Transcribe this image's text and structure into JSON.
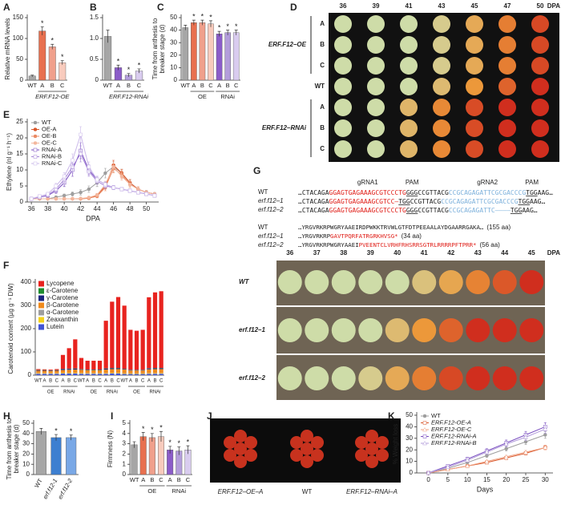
{
  "panel_labels": [
    "A",
    "B",
    "C",
    "D",
    "E",
    "F",
    "G",
    "H",
    "I",
    "J",
    "K"
  ],
  "chart_data": [
    {
      "type": "bar",
      "y_label": [
        "Relative mRNA levels"
      ],
      "categories": [
        "WT",
        "A",
        "B",
        "C"
      ],
      "values": [
        10,
        118,
        80,
        42
      ],
      "errors": [
        2,
        10,
        6,
        5
      ],
      "colors": [
        "#a6a6a6",
        "#e8704f",
        "#f0a08c",
        "#f8cbbd"
      ],
      "significance": [
        null,
        "*",
        "*",
        "*"
      ],
      "group_labels": [
        "ERF.F12-OE"
      ],
      "ylim": [
        0,
        150
      ],
      "yticks": [
        0,
        50,
        100,
        150
      ]
    },
    {
      "type": "bar",
      "categories": [
        "WT",
        "A",
        "B",
        "C"
      ],
      "values": [
        1.05,
        0.3,
        0.12,
        0.22
      ],
      "errors": [
        0.15,
        0.06,
        0.04,
        0.05
      ],
      "colors": [
        "#a6a6a6",
        "#8b5cc9",
        "#b39ddb",
        "#d9ccef"
      ],
      "significance": [
        null,
        "*",
        "*",
        "*"
      ],
      "group_labels": [
        "ERF.F12-RNAi"
      ],
      "ylim": [
        0,
        1.5
      ],
      "yticks": [
        0,
        0.5,
        {
          "value": 1,
          "label": "1.0"
        },
        1.5
      ]
    },
    {
      "type": "bar",
      "y_label": [
        "Time from anthesis to",
        "breaker stage (d)"
      ],
      "categories": [
        "WT",
        "A",
        "B",
        "C",
        "A",
        "B",
        "C"
      ],
      "values": [
        42,
        46,
        46,
        45,
        37,
        38,
        38
      ],
      "errors": [
        2,
        2,
        2,
        2.5,
        2,
        2,
        2
      ],
      "colors": [
        "#a6a6a6",
        "#e8704f",
        "#f0a08c",
        "#f8cbbd",
        "#8b5cc9",
        "#b39ddb",
        "#d9ccef"
      ],
      "significance": [
        null,
        "*",
        "*",
        "*",
        "*",
        "*",
        "*"
      ],
      "group_labels": [
        "OE",
        "RNAi"
      ],
      "ylim": [
        0,
        50
      ],
      "yticks": [
        0,
        10,
        20,
        30,
        40,
        50
      ]
    },
    {
      "type": "line",
      "y_label": [
        "Ethylene (nl g⁻¹ h⁻¹)"
      ],
      "x_label": "DPA",
      "legend": "top-left",
      "x": [
        36,
        37,
        38,
        39,
        40,
        41,
        42,
        43,
        44,
        45,
        46,
        47,
        48,
        49,
        50,
        51
      ],
      "xlim": [
        35.5,
        51.5
      ],
      "xticks": [
        36,
        38,
        40,
        42,
        44,
        46,
        48,
        50
      ],
      "ylim": [
        0,
        25
      ],
      "yticks": [
        0,
        5,
        10,
        15,
        20,
        25
      ],
      "series": [
        {
          "name": "WT",
          "color": "#9e9e9e",
          "marker": "circle",
          "values": [
            1,
            1,
            1,
            1.5,
            2,
            2.5,
            3,
            4,
            6,
            9,
            11,
            9,
            6,
            4,
            3,
            2.5
          ],
          "errors": [
            0.3,
            0.3,
            0.3,
            0.4,
            0.5,
            0.6,
            0.8,
            1,
            1.2,
            1.5,
            1.5,
            1.2,
            1,
            0.8,
            0.6,
            0.5
          ]
        },
        {
          "name": "OE-A",
          "color": "#d9572b",
          "marker": "circle",
          "values": [
            1,
            1,
            1,
            1,
            1,
            1,
            1,
            1.2,
            2,
            5,
            11.5,
            9,
            6,
            4,
            3,
            2.5
          ],
          "errors": [
            0.2,
            0.2,
            0.2,
            0.2,
            0.2,
            0.2,
            0.2,
            0.3,
            0.5,
            1,
            1.5,
            1.2,
            1,
            0.8,
            0.5,
            0.4
          ]
        },
        {
          "name": "OE-B",
          "color": "#eb8a63",
          "marker": "circle",
          "values": [
            1,
            1,
            1,
            1,
            1,
            1,
            1,
            1.2,
            1.8,
            4.5,
            10.5,
            8.5,
            5.5,
            4,
            3,
            2.5
          ],
          "errors": [
            0.2,
            0.2,
            0.2,
            0.2,
            0.2,
            0.2,
            0.2,
            0.3,
            0.5,
            1,
            1.4,
            1.2,
            1,
            0.8,
            0.5,
            0.4
          ]
        },
        {
          "name": "OE-C",
          "color": "#f3b79e",
          "marker": "circle",
          "values": [
            1,
            1,
            1,
            1,
            1,
            1,
            1.1,
            1.4,
            2.2,
            5.5,
            11,
            8,
            5.5,
            4,
            3,
            2.5
          ],
          "errors": [
            0.2,
            0.2,
            0.2,
            0.2,
            0.2,
            0.2,
            0.2,
            0.3,
            0.5,
            1,
            1.5,
            1.2,
            1,
            0.8,
            0.5,
            0.4
          ]
        },
        {
          "name": "RNAi-A",
          "color": "#7a4fc0",
          "marker": "square",
          "values": [
            1,
            1.5,
            2,
            3.5,
            6,
            10,
            16,
            10,
            7,
            5.5,
            4.5,
            4,
            3.5,
            3,
            2.5,
            2
          ],
          "errors": [
            0.3,
            0.4,
            0.5,
            0.8,
            1.2,
            2,
            2.5,
            1.5,
            1,
            0.8,
            0.6,
            0.5,
            0.5,
            0.4,
            0.4,
            0.3
          ]
        },
        {
          "name": "RNAi-B",
          "color": "#a788d8",
          "marker": "square",
          "values": [
            1,
            1.5,
            2.2,
            4,
            7,
            11,
            15,
            9.5,
            6.5,
            5,
            4.5,
            4,
            3.5,
            3,
            2.5,
            2
          ],
          "errors": [
            0.3,
            0.4,
            0.5,
            0.8,
            1.2,
            2,
            2.5,
            1.5,
            1,
            0.8,
            0.6,
            0.5,
            0.5,
            0.4,
            0.4,
            0.3
          ]
        },
        {
          "name": "RNAi-C",
          "color": "#cbb9ea",
          "marker": "square",
          "values": [
            1,
            1.8,
            2.5,
            5,
            8,
            13,
            21,
            11,
            7,
            5.5,
            4.5,
            4,
            3.5,
            3,
            2.5,
            2
          ],
          "errors": [
            0.3,
            0.4,
            0.5,
            0.8,
            1.2,
            2,
            2.5,
            1.5,
            1,
            0.8,
            0.6,
            0.5,
            0.5,
            0.4,
            0.4,
            0.3
          ]
        }
      ]
    },
    {
      "type": "stacked_bar",
      "y_label": [
        "Carotenoid content (µg g⁻¹ DW)"
      ],
      "legend": "top-left",
      "categories": [
        "WT",
        "A",
        "B",
        "C",
        "A",
        "B",
        "C",
        "WT",
        "A",
        "B",
        "C",
        "A",
        "B",
        "C",
        "WT",
        "A",
        "B",
        "C",
        "A",
        "B",
        "C"
      ],
      "group_labels": [
        "OE",
        "RNAi",
        "OE",
        "RNAi",
        "OE",
        "RNAi"
      ],
      "ylim": [
        0,
        400
      ],
      "yticks": [
        0,
        100,
        200,
        300,
        400
      ],
      "series": [
        {
          "name": "Lycopene",
          "color": "#e8231f",
          "values": [
            4,
            3,
            3,
            4,
            60,
            88,
            125,
            48,
            38,
            38,
            38,
            205,
            285,
            305,
            272,
            172,
            168,
            172,
            305,
            325,
            330
          ]
        },
        {
          "name": "ε-Carotene",
          "color": "#1e8c2e",
          "values": [
            1,
            1,
            1,
            1,
            1,
            1,
            1,
            1,
            1,
            1,
            1,
            1,
            1,
            1,
            1,
            1,
            1,
            1,
            1,
            1,
            1
          ]
        },
        {
          "name": "γ-Carotene",
          "color": "#1a237e",
          "values": [
            2,
            2,
            2,
            2,
            4,
            4,
            4,
            2,
            2,
            2,
            2,
            4,
            4,
            4,
            2,
            2,
            2,
            2,
            4,
            4,
            4
          ]
        },
        {
          "name": "β-Carotene",
          "color": "#f08a1c",
          "values": [
            10,
            10,
            9,
            10,
            12,
            13,
            14,
            14,
            12,
            12,
            12,
            15,
            16,
            16,
            16,
            12,
            12,
            12,
            16,
            17,
            17
          ]
        },
        {
          "name": "α-Carotene",
          "color": "#9e9e9e",
          "values": [
            1,
            1,
            1,
            1,
            1,
            1,
            1,
            1,
            1,
            1,
            1,
            1,
            1,
            1,
            1,
            1,
            1,
            1,
            1,
            1,
            1
          ]
        },
        {
          "name": "Zeaxanthin",
          "color": "#f5d31c",
          "values": [
            2,
            2,
            2,
            2,
            2,
            2,
            2,
            2,
            2,
            2,
            2,
            2,
            2,
            2,
            2,
            2,
            2,
            2,
            2,
            2,
            2
          ]
        },
        {
          "name": "Lutein",
          "color": "#4254d6",
          "values": [
            6,
            6,
            6,
            6,
            7,
            7,
            7,
            6,
            6,
            6,
            6,
            6,
            7,
            7,
            5,
            5,
            5,
            5,
            6,
            6,
            6
          ]
        }
      ]
    },
    {
      "type": "bar",
      "y_label": [
        "Time from anthesis to",
        "breaker stage (d)"
      ],
      "categories": [
        "WT",
        "erf.f12-1",
        "erf.f12-2"
      ],
      "values": [
        42,
        36,
        36
      ],
      "errors": [
        3,
        3,
        2.5
      ],
      "colors": [
        "#a6a6a6",
        "#3d7fd0",
        "#79a8e6"
      ],
      "significance": [
        null,
        "*",
        "*"
      ],
      "ylim": [
        0,
        50
      ],
      "yticks": [
        0,
        10,
        20,
        30,
        40,
        50
      ]
    },
    {
      "type": "bar",
      "y_label": [
        "Firmness (N)"
      ],
      "categories": [
        "WT",
        "A",
        "B",
        "C",
        "A",
        "B",
        "C"
      ],
      "values": [
        2.9,
        3.7,
        3.6,
        3.7,
        2.4,
        2.3,
        2.4
      ],
      "errors": [
        0.3,
        0.4,
        0.4,
        0.5,
        0.35,
        0.4,
        0.4
      ],
      "colors": [
        "#a6a6a6",
        "#e8704f",
        "#f0a08c",
        "#f8cbbd",
        "#8b5cc9",
        "#b39ddb",
        "#d9ccef"
      ],
      "significance": [
        null,
        "*",
        "*",
        "*",
        "*",
        "*",
        "*"
      ],
      "group_labels": [
        "OE",
        "RNAi"
      ],
      "ylim": [
        0,
        5
      ],
      "yticks": [
        0,
        1,
        2,
        3,
        4,
        5
      ]
    },
    {
      "type": "line",
      "y_label": [
        "% Weight loss"
      ],
      "x_label": "Days",
      "legend": "top-left",
      "x": [
        0,
        5,
        10,
        15,
        20,
        25,
        30
      ],
      "xlim": [
        -3,
        32
      ],
      "xticks": [
        0,
        5,
        10,
        15,
        20,
        25,
        30
      ],
      "ylim": [
        0,
        50
      ],
      "yticks": [
        0,
        10,
        20,
        30,
        40,
        50
      ],
      "series": [
        {
          "name": "WT",
          "color": "#9e9e9e",
          "marker": "circle",
          "values": [
            0,
            4,
            9,
            15,
            21,
            27,
            33
          ],
          "errors": [
            0,
            0.8,
            1,
            1.5,
            2,
            2.5,
            3
          ]
        },
        {
          "name": "ERF.F12-OE-A",
          "color": "#d9572b",
          "marker": "square",
          "values": [
            0,
            3,
            6,
            9,
            13,
            17,
            22
          ],
          "errors": [
            0,
            0.6,
            0.8,
            1,
            1.2,
            1.5,
            2
          ]
        },
        {
          "name": "ERF.F12-OE-C",
          "color": "#f0a080",
          "marker": "triangle",
          "values": [
            0,
            3,
            6,
            10,
            14,
            18,
            22
          ],
          "errors": [
            0,
            0.6,
            0.8,
            1,
            1.2,
            1.5,
            2
          ]
        },
        {
          "name": "ERF.F12-RNAi-A",
          "color": "#7a4fc0",
          "marker": "square",
          "values": [
            0,
            6,
            12,
            19,
            26,
            33,
            40
          ],
          "errors": [
            0,
            1,
            1.5,
            2,
            2.5,
            3,
            3.5
          ]
        },
        {
          "name": "ERF.F12-RNAi-B",
          "color": "#b39ddb",
          "marker": "triangle",
          "values": [
            0,
            5,
            11,
            18,
            25,
            31,
            38
          ],
          "errors": [
            0,
            1,
            1.5,
            2,
            2.5,
            3,
            3.5
          ]
        }
      ]
    }
  ],
  "panel_d": {
    "dpa": [
      36,
      39,
      41,
      43,
      45,
      47,
      50
    ],
    "unit": "DPA",
    "rows": [
      "A",
      "B",
      "C",
      "WT",
      "A",
      "B",
      "C"
    ],
    "groups": [
      "ERF.F12–OE",
      "ERF.F12–RNAi"
    ]
  },
  "panel_g": {
    "headers": [
      "gRNA1",
      "PAM",
      "gRNA2",
      "PAM"
    ],
    "dna": [
      {
        "name": "WT",
        "segments": [
          "…CTACAGA",
          "GGAGTGAGAAAGCGTCCCTG",
          "GGG",
          "CCGTTACG",
          "CCGCAGAGATTCGCGACCCG",
          "TGG",
          "AAG…"
        ]
      },
      {
        "name": "erf.f12–1",
        "segments": [
          "…CTACAGA",
          "GGAGTGAGAAAGCGTCC–",
          "TGG",
          "CCGTTACG",
          "CCGCAGAGATTCGCGACCCG",
          "TGG",
          "AAG…"
        ]
      },
      {
        "name": "erf.f12–2",
        "segments": [
          "…CTACAGA",
          "GGAGTGAGAAAGCGTCCCTG",
          "GGG",
          "CCGTTACG",
          "CCGCAGAGATTC————",
          "TGG",
          "AAG…"
        ]
      }
    ],
    "protein": [
      {
        "name": "WT",
        "segments": [
          "…YRGVRKRPWGRYAAEIRDPWKKTRVWLGTFDTPEEAALAYDGAARRGAKA…"
        ],
        "length": "(155 aa)"
      },
      {
        "name": "erf.f12–1",
        "segments": [
          "…YRGVRKRP",
          "GAVTPQRFATRGRKHVSG*"
        ],
        "length": "(34 aa)"
      },
      {
        "name": "erf.f12–2",
        "segments": [
          "…YRGVRKRPWGRYAAEI",
          "PVEENTCLVRHFRHSRRSGTRLRRRRPFTPRR*"
        ],
        "length": "(56 aa)"
      }
    ]
  },
  "panel_photo": {
    "dpa": [
      36,
      37,
      38,
      39,
      40,
      41,
      42,
      43,
      44,
      45
    ],
    "unit": "DPA",
    "rows": [
      "WT",
      "erf.f12–1",
      "erf.f12–2"
    ]
  },
  "panel_j": {
    "labels": [
      "ERF.F12–OE–A",
      "WT",
      "ERF.F12–RNAi–A"
    ]
  }
}
